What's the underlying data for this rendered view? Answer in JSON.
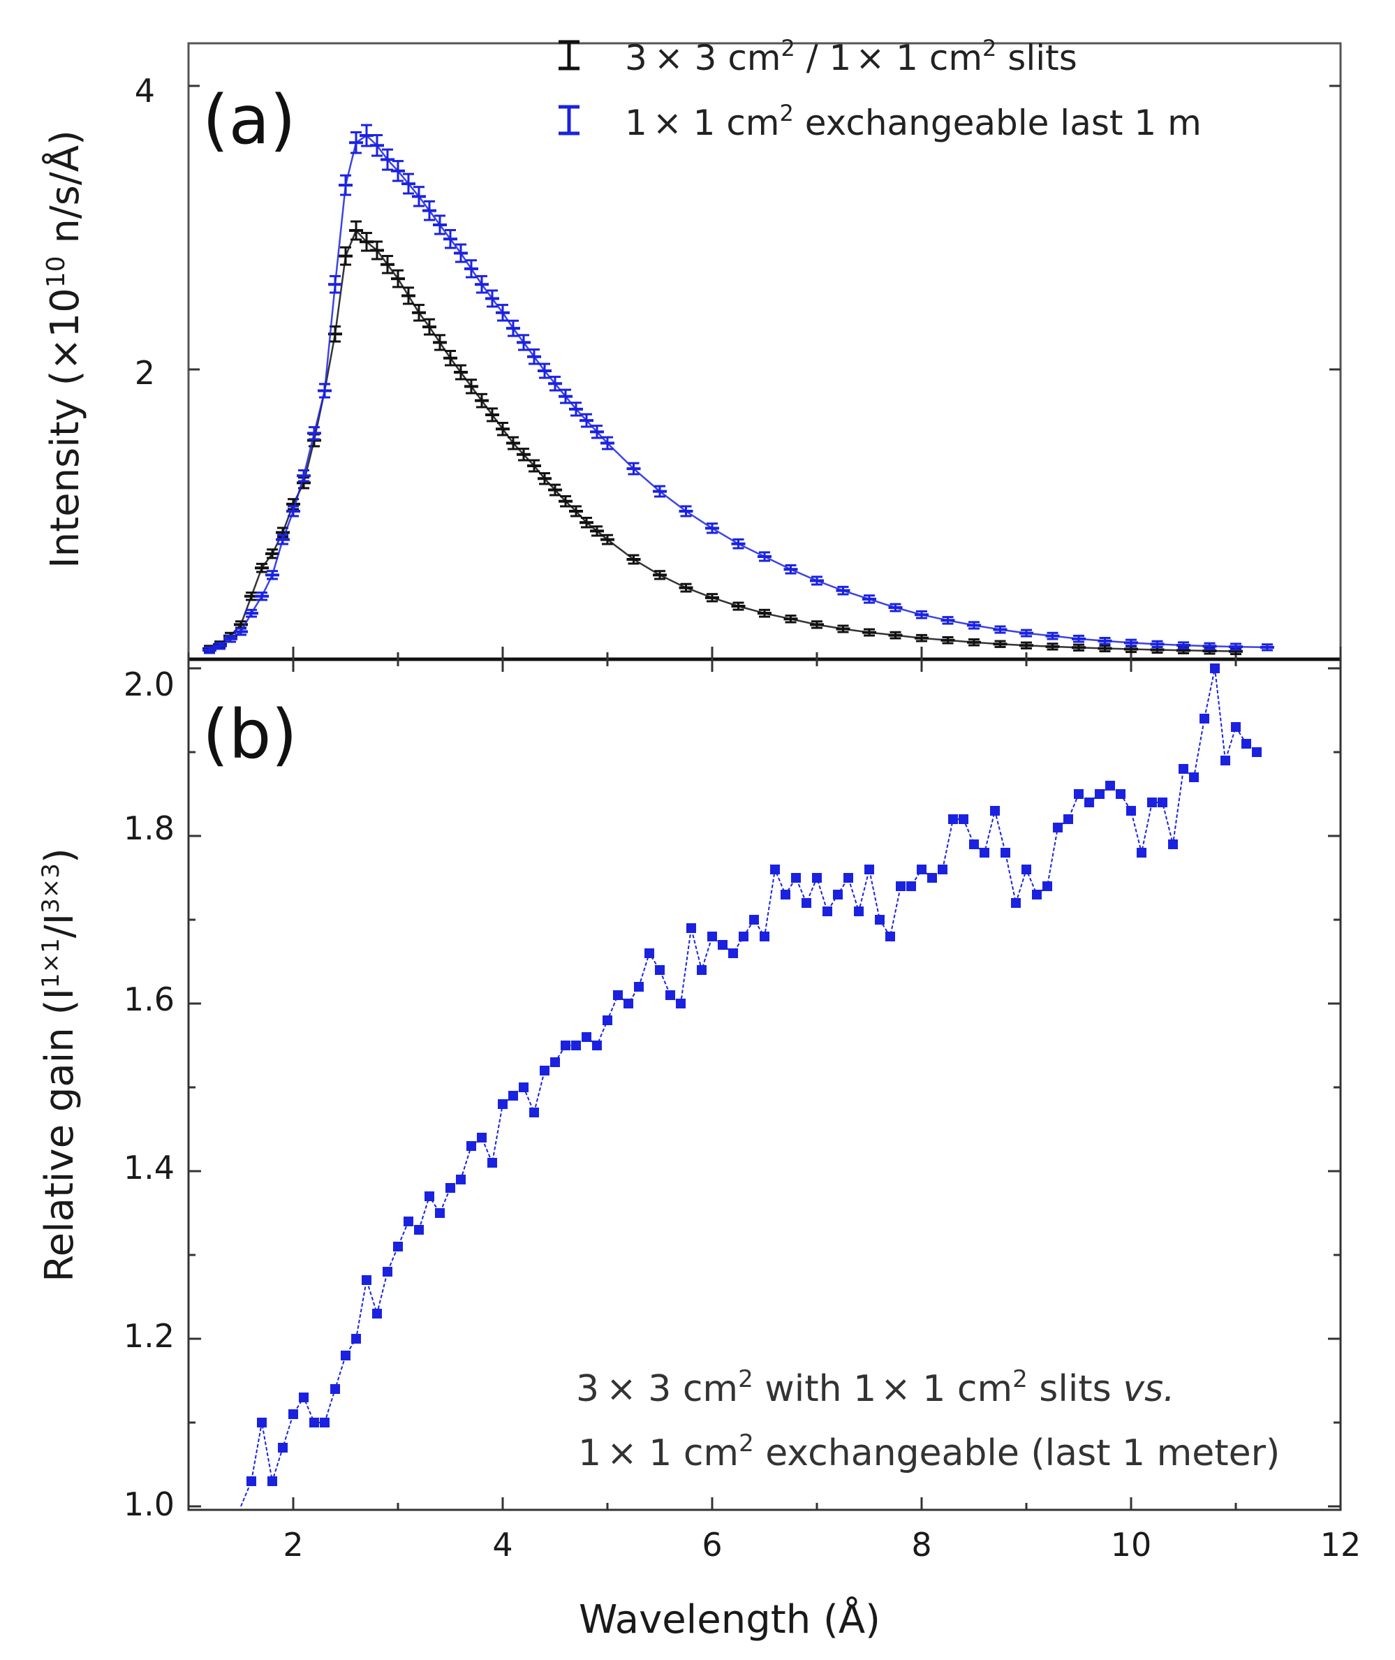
{
  "colors": {
    "series_3x3": "#111111",
    "series_1x1": "#1a22e0",
    "gain": "#1a22e0",
    "axis": "#222222"
  },
  "xaxis": {
    "label": "Wavelength (Å)",
    "ticks": [
      2,
      4,
      6,
      8,
      10,
      12
    ]
  },
  "panel_a": {
    "label": "(a)",
    "ylabel_main": "Intensity (×10",
    "ylabel_sup": "10",
    "ylabel_tail": " n/s/Å)",
    "ytick_labels": [
      "4",
      "2"
    ]
  },
  "panel_b": {
    "label": "(b)",
    "ylabel_main": "Relative gain  (I",
    "ylabel_sup1": "1×1",
    "ylabel_mid": "/I",
    "ylabel_sup2": "3×3",
    "ylabel_tail": ")",
    "ytick_labels": [
      "2.0",
      "1.8",
      "1.6",
      "1.4",
      "1.2",
      "1.0"
    ]
  },
  "legend": {
    "entry1": {
      "a": "3",
      "b": " 3 cm",
      "sup1": "2",
      "c": " / 1",
      "d": " 1 cm",
      "sup2": "2",
      "e": " slits",
      "cross": "×"
    },
    "entry2": {
      "a": "1",
      "b": " 1 cm",
      "sup1": "2",
      "c": " exchangeable last 1 m",
      "cross": "×"
    }
  },
  "annotation": {
    "line1": {
      "a": "3",
      "b": " 3 cm",
      "sup1": "2",
      "c": " with 1",
      "d": " 1 cm",
      "sup2": "2",
      "e": " slits ",
      "f": "vs.",
      "cross": "×"
    },
    "line2": {
      "a": "1",
      "b": " 1 cm",
      "sup1": "2",
      "c": " exchangeable (last 1 meter)",
      "cross": "×"
    }
  },
  "chart_data": [
    {
      "type": "line",
      "title": "(a)",
      "xlabel": "Wavelength (Å)",
      "ylabel": "Intensity (×10^10 n/s/Å)",
      "xlim": [
        1,
        12
      ],
      "ylim": [
        0,
        4.4
      ],
      "series": [
        {
          "name": "3 × 3 cm2 / 1 × 1 cm2 slits",
          "x": [
            1.2,
            1.3,
            1.4,
            1.5,
            1.6,
            1.7,
            1.8,
            1.9,
            2.0,
            2.1,
            2.2,
            2.3,
            2.4,
            2.5,
            2.6,
            2.7,
            2.8,
            2.9,
            3.0,
            3.1,
            3.2,
            3.3,
            3.4,
            3.5,
            3.6,
            3.7,
            3.8,
            3.9,
            4.0,
            4.1,
            4.2,
            4.3,
            4.4,
            4.5,
            4.6,
            4.7,
            4.8,
            4.9,
            5.0,
            5.25,
            5.5,
            5.75,
            6.0,
            6.25,
            6.5,
            6.75,
            7.0,
            7.25,
            7.5,
            7.75,
            8.0,
            8.25,
            8.5,
            8.75,
            9.0,
            9.25,
            9.5,
            9.75,
            10.0,
            10.25,
            10.5,
            10.75,
            11.0
          ],
          "y": [
            0.03,
            0.06,
            0.12,
            0.2,
            0.4,
            0.6,
            0.7,
            0.85,
            1.05,
            1.2,
            1.5,
            1.85,
            2.25,
            2.8,
            2.98,
            2.9,
            2.84,
            2.74,
            2.64,
            2.52,
            2.4,
            2.3,
            2.19,
            2.08,
            1.98,
            1.88,
            1.78,
            1.68,
            1.58,
            1.48,
            1.4,
            1.32,
            1.23,
            1.15,
            1.07,
            1.0,
            0.92,
            0.86,
            0.8,
            0.66,
            0.55,
            0.46,
            0.39,
            0.33,
            0.28,
            0.24,
            0.2,
            0.17,
            0.145,
            0.125,
            0.105,
            0.09,
            0.075,
            0.063,
            0.053,
            0.045,
            0.038,
            0.032,
            0.027,
            0.022,
            0.018,
            0.015,
            0.012
          ]
        },
        {
          "name": "1 × 1 cm2 exchangeable last 1 m",
          "x": [
            1.2,
            1.3,
            1.4,
            1.5,
            1.6,
            1.7,
            1.8,
            1.9,
            2.0,
            2.1,
            2.2,
            2.3,
            2.4,
            2.5,
            2.6,
            2.7,
            2.8,
            2.9,
            3.0,
            3.1,
            3.2,
            3.3,
            3.4,
            3.5,
            3.6,
            3.7,
            3.8,
            3.9,
            4.0,
            4.1,
            4.2,
            4.3,
            4.4,
            4.5,
            4.6,
            4.7,
            4.8,
            4.9,
            5.0,
            5.25,
            5.5,
            5.75,
            6.0,
            6.25,
            6.5,
            6.75,
            7.0,
            7.25,
            7.5,
            7.75,
            8.0,
            8.25,
            8.5,
            8.75,
            9.0,
            9.25,
            9.5,
            9.75,
            10.0,
            10.25,
            10.5,
            10.75,
            11.0,
            11.3
          ],
          "y": [
            0.02,
            0.05,
            0.1,
            0.15,
            0.28,
            0.4,
            0.55,
            0.8,
            1.0,
            1.25,
            1.55,
            1.85,
            2.6,
            3.3,
            3.6,
            3.65,
            3.58,
            3.48,
            3.4,
            3.31,
            3.22,
            3.12,
            3.02,
            2.92,
            2.82,
            2.71,
            2.6,
            2.5,
            2.4,
            2.29,
            2.19,
            2.09,
            1.99,
            1.9,
            1.81,
            1.72,
            1.64,
            1.56,
            1.48,
            1.3,
            1.14,
            1.0,
            0.88,
            0.77,
            0.68,
            0.59,
            0.51,
            0.44,
            0.38,
            0.32,
            0.27,
            0.23,
            0.195,
            0.165,
            0.14,
            0.12,
            0.1,
            0.085,
            0.072,
            0.062,
            0.054,
            0.048,
            0.044,
            0.04
          ]
        }
      ]
    },
    {
      "type": "line",
      "title": "(b)",
      "xlabel": "Wavelength (Å)",
      "ylabel": "Relative gain (I1×1/I3×3)",
      "xlim": [
        1,
        12
      ],
      "ylim": [
        1.0,
        2.05
      ],
      "series": [
        {
          "name": "3 × 3 cm2 with 1 × 1 cm2 slits vs. 1 × 1 cm2 exchangeable (last 1 meter)",
          "x": [
            1.6,
            1.7,
            1.8,
            1.9,
            2.0,
            2.1,
            2.2,
            2.3,
            2.4,
            2.5,
            2.6,
            2.7,
            2.8,
            2.9,
            3.0,
            3.1,
            3.2,
            3.3,
            3.4,
            3.5,
            3.6,
            3.7,
            3.8,
            3.9,
            4.0,
            4.1,
            4.2,
            4.3,
            4.4,
            4.5,
            4.6,
            4.7,
            4.8,
            4.9,
            5.0,
            5.1,
            5.2,
            5.3,
            5.4,
            5.5,
            5.6,
            5.7,
            5.8,
            5.9,
            6.0,
            6.1,
            6.2,
            6.3,
            6.4,
            6.5,
            6.6,
            6.7,
            6.8,
            6.9,
            7.0,
            7.1,
            7.2,
            7.3,
            7.4,
            7.5,
            7.6,
            7.7,
            7.8,
            7.9,
            8.0,
            8.1,
            8.2,
            8.3,
            8.4,
            8.5,
            8.6,
            8.7,
            8.8,
            8.9,
            9.0,
            9.1,
            9.2,
            9.3,
            9.4,
            9.5,
            9.6,
            9.7,
            9.8,
            9.9,
            10.0,
            10.1,
            10.2,
            10.3,
            10.4,
            10.5,
            10.6,
            10.7,
            10.8,
            10.9,
            11.0,
            11.1,
            11.2
          ],
          "y": [
            1.03,
            1.1,
            1.03,
            1.07,
            1.11,
            1.13,
            1.1,
            1.1,
            1.14,
            1.18,
            1.2,
            1.27,
            1.23,
            1.28,
            1.31,
            1.34,
            1.33,
            1.37,
            1.35,
            1.38,
            1.39,
            1.43,
            1.44,
            1.41,
            1.48,
            1.49,
            1.5,
            1.47,
            1.52,
            1.53,
            1.55,
            1.55,
            1.56,
            1.55,
            1.58,
            1.61,
            1.6,
            1.62,
            1.66,
            1.64,
            1.61,
            1.6,
            1.69,
            1.64,
            1.68,
            1.67,
            1.66,
            1.68,
            1.7,
            1.68,
            1.76,
            1.73,
            1.75,
            1.72,
            1.75,
            1.71,
            1.73,
            1.75,
            1.71,
            1.76,
            1.7,
            1.68,
            1.74,
            1.74,
            1.76,
            1.75,
            1.76,
            1.82,
            1.82,
            1.79,
            1.78,
            1.83,
            1.78,
            1.72,
            1.76,
            1.73,
            1.74,
            1.81,
            1.82,
            1.85,
            1.84,
            1.85,
            1.86,
            1.85,
            1.83,
            1.78,
            1.84,
            1.84,
            1.79,
            1.88,
            1.87,
            1.94,
            2.0,
            1.89,
            1.93,
            1.91,
            1.9
          ]
        }
      ]
    }
  ]
}
